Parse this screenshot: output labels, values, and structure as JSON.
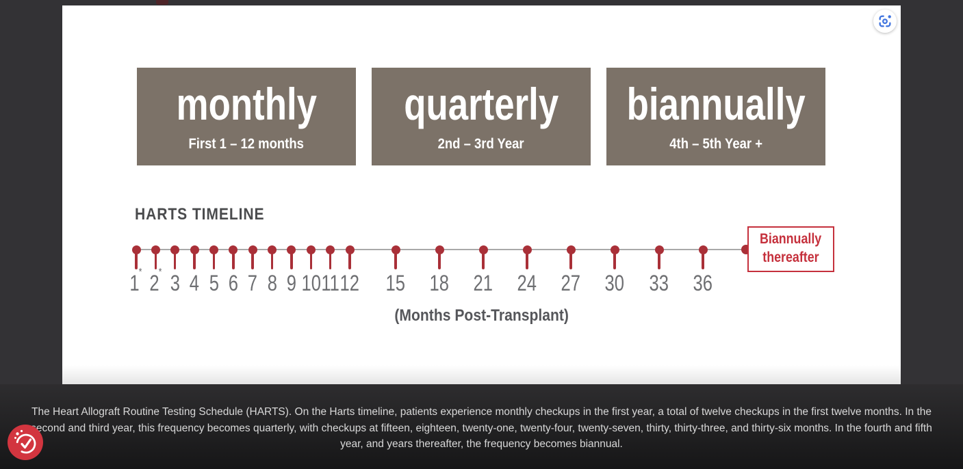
{
  "infographic": {
    "frequency_boxes": [
      {
        "title": "monthly",
        "subtitle": "First 1 – 12 months"
      },
      {
        "title": "quarterly",
        "subtitle": "2nd – 3rd Year"
      },
      {
        "title": "biannually",
        "subtitle": "4th – 5th Year +"
      }
    ],
    "timeline": {
      "heading": "HARTS TIMELINE",
      "axis_label": "(Months Post-Transplant)",
      "end_label_line1": "Biannually",
      "end_label_line2": "thereafter",
      "checkup_months": [
        1,
        2,
        3,
        4,
        5,
        6,
        7,
        8,
        9,
        10,
        11,
        12,
        15,
        18,
        21,
        24,
        27,
        30,
        33,
        36
      ],
      "ticks": [
        {
          "label": "1",
          "sup": "*"
        },
        {
          "label": "2",
          "sup": "*"
        },
        {
          "label": "3"
        },
        {
          "label": "4"
        },
        {
          "label": "5"
        },
        {
          "label": "6"
        },
        {
          "label": "7"
        },
        {
          "label": "8"
        },
        {
          "label": "9"
        },
        {
          "label": "10"
        },
        {
          "label": "11"
        },
        {
          "label": "12"
        },
        {
          "label": "15"
        },
        {
          "label": "18"
        },
        {
          "label": "21"
        },
        {
          "label": "24"
        },
        {
          "label": "27"
        },
        {
          "label": "30"
        },
        {
          "label": "33"
        },
        {
          "label": "36"
        }
      ]
    },
    "colors": {
      "box_gray": "#7c7268",
      "timeline_red": "#a93038",
      "end_label_red": "#c5303c",
      "tick_text_gray": "#6e6f72",
      "heading_gray": "#4a4b4d",
      "axis_line_gray": "#a9a9a9"
    }
  },
  "caption": "The Heart Allograft Routine Testing Schedule (HARTS). On the Harts timeline, patients experience monthly checkups in the first year, a total of twelve checkups in the first twelve months. In the second and third year, this frequency becomes quarterly, with checkups at fifteen, eighteen, twenty-one, twenty-four, twenty-seven, thirty, thirty-three, and thirty-six months. In the fourth and fifth year, and years thereafter, the frequency becomes biannual.",
  "viewer": {
    "lens_button_color": "#4175df",
    "cookie_button_color": "#d2353f"
  }
}
